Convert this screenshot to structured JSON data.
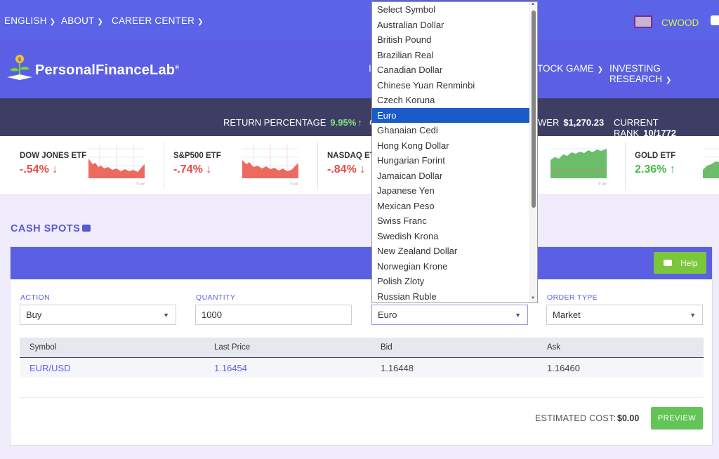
{
  "topbar": {
    "nav": [
      {
        "label": "ENGLISH"
      },
      {
        "label": "ABOUT"
      },
      {
        "label": "CAREER CENTER"
      }
    ],
    "username": "CWOOD"
  },
  "brand": {
    "name": "PersonalFinanceLab",
    "reg": "®"
  },
  "mainnav": {
    "partial_left": "I",
    "stock_game": "TOCK GAME",
    "investing_research": "INVESTING RESEARCH"
  },
  "stats": {
    "return_label": "RETURN PERCENTAGE",
    "return_value": "9.95%",
    "partial_c": "C",
    "power_label": "WER",
    "power_value": "$1,270.23",
    "rank_label": "CURRENT RANK",
    "rank_value": "10/1772"
  },
  "tickers": [
    {
      "name": "DOW JONES ETF",
      "change": "-.54%",
      "direction": "down"
    },
    {
      "name": "S&P500 ETF",
      "change": "-.74%",
      "direction": "down"
    },
    {
      "name": "NASDAQ ETF",
      "change": "-.84%",
      "direction": "down"
    },
    {
      "name": "GOLD ETF",
      "change": "2.36%",
      "direction": "up"
    }
  ],
  "section": {
    "title": "CASH SPOTS"
  },
  "panel": {
    "help_label": "Help",
    "fields": {
      "action": {
        "label": "ACTION",
        "value": "Buy"
      },
      "quantity": {
        "label": "QUANTITY",
        "value": "1000"
      },
      "symbol": {
        "value": "Euro"
      },
      "order_type": {
        "label": "ORDER TYPE",
        "value": "Market"
      }
    },
    "table": {
      "headers": [
        "Symbol",
        "Last Price",
        "Bid",
        "Ask"
      ],
      "rows": [
        [
          "EUR/USD",
          "1.16454",
          "1.16448",
          "1.16460"
        ]
      ]
    },
    "estimated_cost_label": "ESTIMATED COST:",
    "estimated_cost_value": "$0.00",
    "preview_label": "PREVIEW"
  },
  "dropdown": {
    "options": [
      "Select Symbol",
      "Australian Dollar",
      "British Pound",
      "Brazilian Real",
      "Canadian Dollar",
      "Chinese Yuan Renminbi",
      "Czech Koruna",
      "Euro",
      "Ghanaian Cedi",
      "Hong Kong Dollar",
      "Hungarian Forint",
      "Jamaican Dollar",
      "Japanese Yen",
      "Mexican Peso",
      "Swiss Franc",
      "Swedish Krona",
      "New Zealand Dollar",
      "Norwegian Krone",
      "Polish Zloty",
      "Russian Ruble"
    ],
    "selected": "Euro"
  },
  "colors": {
    "accent": "#5b63e7",
    "header_dark": "#3e3e65",
    "positive": "#4cb84b",
    "negative": "#e54a45",
    "selection": "#1a5bc7"
  }
}
